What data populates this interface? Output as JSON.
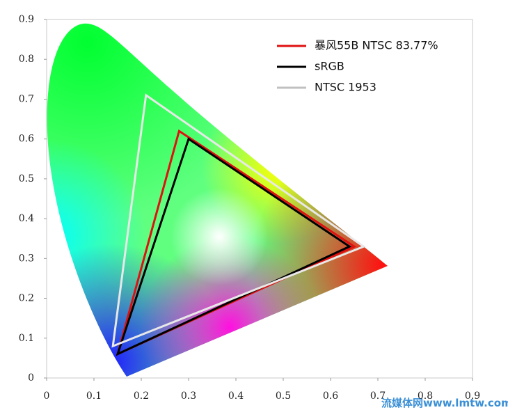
{
  "chart_data": {
    "type": "gamut",
    "xlim": [
      0,
      0.9
    ],
    "ylim": [
      0,
      0.9
    ],
    "xticks": [
      0,
      0.1,
      0.2,
      0.3,
      0.4,
      0.5,
      0.6,
      0.7,
      0.8,
      0.9
    ],
    "yticks": [
      0,
      0.1,
      0.2,
      0.3,
      0.4,
      0.5,
      0.6,
      0.7,
      0.8,
      0.9
    ],
    "legend": "upper right",
    "series": [
      {
        "name": "暴风55B NTSC 83.77%",
        "color": "#e01010",
        "x": [
          0.28,
          0.65,
          0.15
        ],
        "values": [
          0.62,
          0.33,
          0.06
        ]
      },
      {
        "name": "sRGB",
        "color": "#000000",
        "x": [
          0.3,
          0.64,
          0.15
        ],
        "values": [
          0.6,
          0.33,
          0.06
        ]
      },
      {
        "name": "NTSC 1953",
        "color": "#e8e8e8",
        "x": [
          0.21,
          0.67,
          0.14
        ],
        "values": [
          0.71,
          0.33,
          0.08
        ]
      }
    ],
    "watermark": "流媒体网www.lmtw.com"
  }
}
